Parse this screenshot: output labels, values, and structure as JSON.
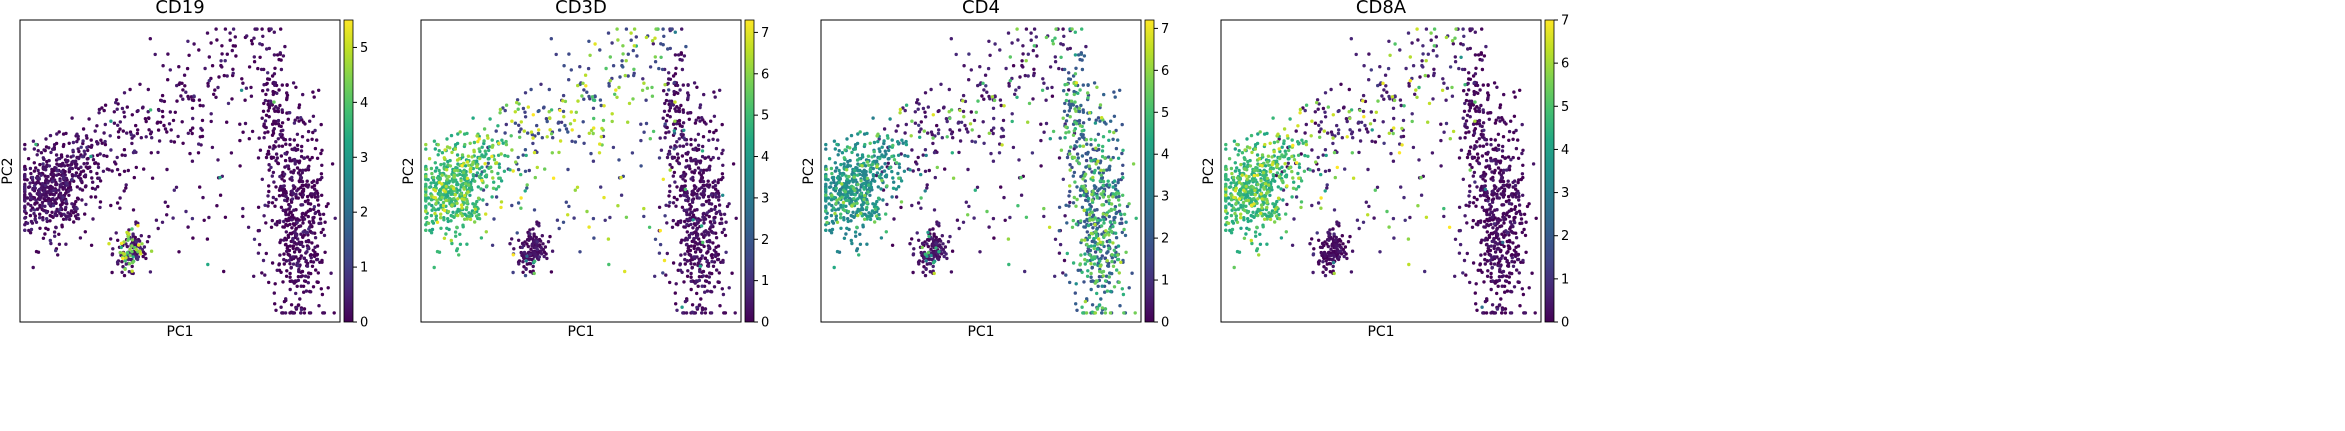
{
  "chart_data": [
    {
      "type": "scatter",
      "title": "CD19",
      "xlabel": "PC1",
      "ylabel": "PC2",
      "colormap": "viridis",
      "color_range": [
        0,
        5.5
      ],
      "colorbar_ticks": [
        "0",
        "1",
        "2",
        "3",
        "4",
        "5"
      ],
      "clusters": [
        {
          "name": "left",
          "value": 0.1,
          "high_value": 4.2,
          "high_fraction": 0.01
        },
        {
          "name": "small",
          "value": 0.3,
          "high_value": 4.6,
          "high_fraction": 0.35
        },
        {
          "name": "right",
          "value": 0.0,
          "high_value": 3.0,
          "high_fraction": 0.0
        },
        {
          "name": "arm",
          "value": 0.1,
          "high_value": 3.5,
          "high_fraction": 0.02
        }
      ]
    },
    {
      "type": "scatter",
      "title": "CD3D",
      "xlabel": "PC1",
      "ylabel": "PC2",
      "colormap": "viridis",
      "color_range": [
        0,
        7.3
      ],
      "colorbar_ticks": [
        "0",
        "1",
        "2",
        "3",
        "4",
        "5",
        "6",
        "7"
      ],
      "clusters": [
        {
          "name": "left",
          "value": 4.6,
          "high_value": 6.0,
          "high_fraction": 0.3
        },
        {
          "name": "small",
          "value": 0.2,
          "high_value": 4.0,
          "high_fraction": 0.05
        },
        {
          "name": "right",
          "value": 0.2,
          "high_value": 4.2,
          "high_fraction": 0.03
        },
        {
          "name": "arm",
          "value": 1.5,
          "high_value": 6.3,
          "high_fraction": 0.45
        }
      ]
    },
    {
      "type": "scatter",
      "title": "CD4",
      "xlabel": "PC1",
      "ylabel": "PC2",
      "colormap": "viridis",
      "color_range": [
        0,
        7.2
      ],
      "colorbar_ticks": [
        "0",
        "1",
        "2",
        "3",
        "4",
        "5",
        "6",
        "7"
      ],
      "clusters": [
        {
          "name": "left",
          "value": 3.3,
          "high_value": 5.0,
          "high_fraction": 0.25
        },
        {
          "name": "small",
          "value": 0.3,
          "high_value": 4.3,
          "high_fraction": 0.1
        },
        {
          "name": "right",
          "value": 2.0,
          "high_value": 5.2,
          "high_fraction": 0.45
        },
        {
          "name": "arm",
          "value": 0.5,
          "high_value": 5.5,
          "high_fraction": 0.2
        }
      ]
    },
    {
      "type": "scatter",
      "title": "CD8A",
      "xlabel": "PC1",
      "ylabel": "PC2",
      "colormap": "viridis",
      "color_range": [
        0,
        7.0
      ],
      "colorbar_ticks": [
        "0",
        "1",
        "2",
        "3",
        "4",
        "5",
        "6",
        "7"
      ],
      "clusters": [
        {
          "name": "left",
          "value": 4.4,
          "high_value": 5.6,
          "high_fraction": 0.3
        },
        {
          "name": "small",
          "value": 0.1,
          "high_value": 3.5,
          "high_fraction": 0.02
        },
        {
          "name": "right",
          "value": 0.1,
          "high_value": 3.0,
          "high_fraction": 0.01
        },
        {
          "name": "arm",
          "value": 0.6,
          "high_value": 5.8,
          "high_fraction": 0.3
        }
      ]
    }
  ]
}
